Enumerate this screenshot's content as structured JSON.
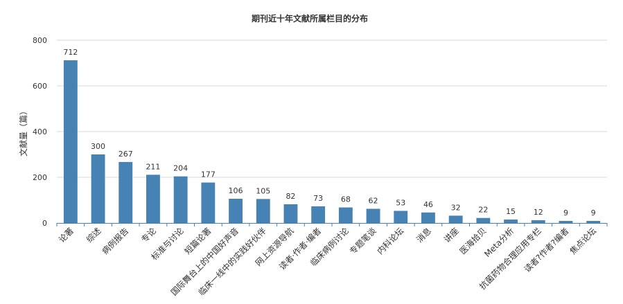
{
  "chart_data": {
    "type": "bar",
    "title": "期刊近十年文献所属栏目的分布",
    "ylabel": "文献量（篇）",
    "xlabel": "",
    "ylim": [
      0,
      800
    ],
    "yticks": [
      0,
      200,
      400,
      600,
      800
    ],
    "grid": true,
    "bar_color": "#4682b4",
    "categories": [
      "论著",
      "综述",
      "病例报告",
      "专论",
      "标准与讨论",
      "短篇论著",
      "国际舞台上的中国好声音",
      "临床一线中的实践好伙伴",
      "网上资源导航",
      "读者·作者·编者",
      "临床病例讨论",
      "专题笔谈",
      "内科论坛",
      "消息",
      "讲座",
      "医海拾贝",
      "Meta分析",
      "抗菌药物合理应用专栏",
      "读者?作者?编者",
      "焦点论坛"
    ],
    "values": [
      712,
      300,
      267,
      211,
      204,
      177,
      106,
      105,
      82,
      73,
      68,
      62,
      53,
      46,
      32,
      22,
      15,
      12,
      9,
      9
    ]
  }
}
